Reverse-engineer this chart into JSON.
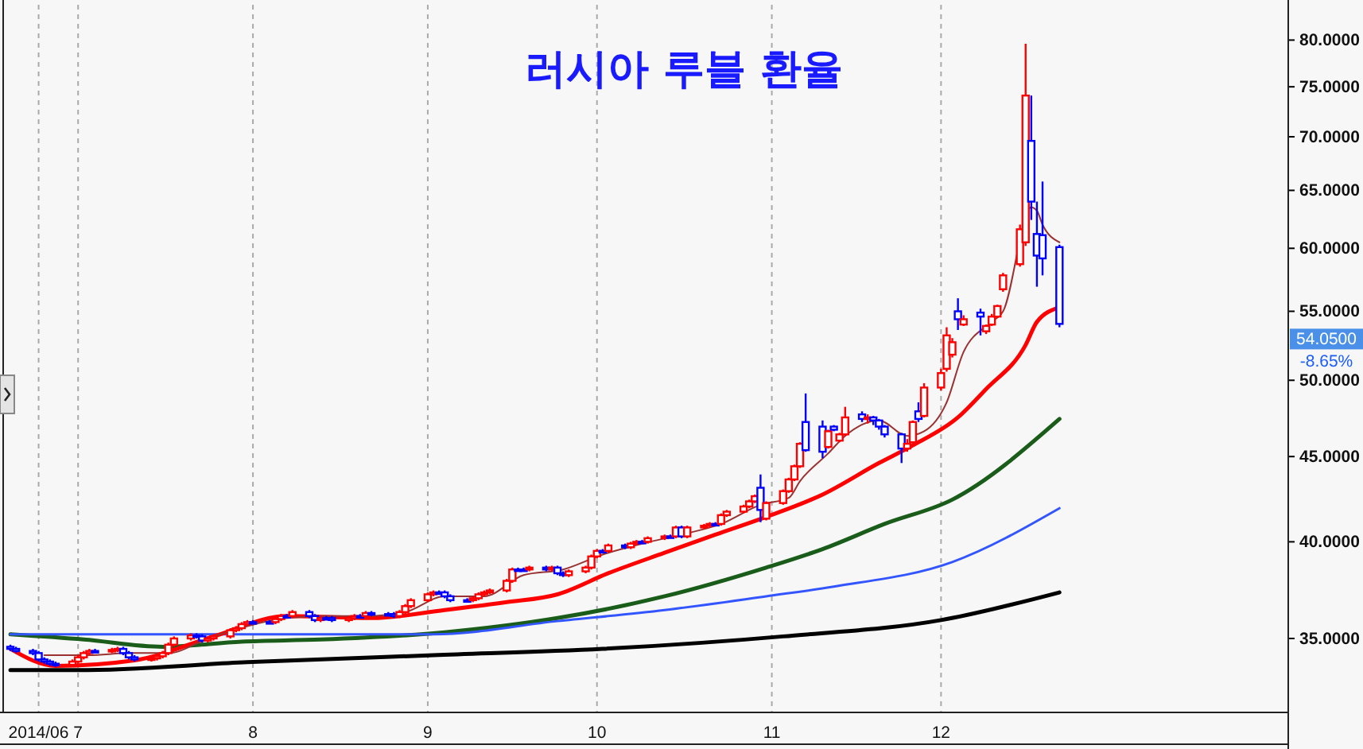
{
  "chart_data": {
    "type": "candlestick",
    "title": "러시아 루블 환율",
    "log": true,
    "grid": "x",
    "xlim": [
      "2014-06-18",
      "2015-01-31"
    ],
    "xticks": [
      {
        "value": "2014-06-24",
        "label": "2014/06"
      },
      {
        "value": "2014-07-01",
        "label": "7"
      },
      {
        "value": "2014-08-01",
        "label": "8"
      },
      {
        "value": "2014-09-01",
        "label": "9"
      },
      {
        "value": "2014-10-01",
        "label": "10"
      },
      {
        "value": "2014-11-01",
        "label": "11"
      },
      {
        "value": "2014-12-01",
        "label": "12"
      }
    ],
    "ylim": [
      31.6,
      84
    ],
    "yticks": [
      {
        "value": 35,
        "label": "35.0000"
      },
      {
        "value": 40,
        "label": "40.0000"
      },
      {
        "value": 45,
        "label": "45.0000"
      },
      {
        "value": 50,
        "label": "50.0000"
      },
      {
        "value": 55,
        "label": "55.0000"
      },
      {
        "value": 60,
        "label": "60.0000"
      },
      {
        "value": 65,
        "label": "65.0000"
      },
      {
        "value": 70,
        "label": "70.0000"
      },
      {
        "value": 75,
        "label": "75.0000"
      },
      {
        "value": 80,
        "label": "80.0000"
      }
    ],
    "x": [
      "2014-06-19",
      "2014-06-20",
      "2014-06-23",
      "2014-06-24",
      "2014-06-25",
      "2014-06-26",
      "2014-06-27",
      "2014-06-30",
      "2014-07-01",
      "2014-07-02",
      "2014-07-03",
      "2014-07-04",
      "2014-07-07",
      "2014-07-08",
      "2014-07-09",
      "2014-07-10",
      "2014-07-11",
      "2014-07-14",
      "2014-07-15",
      "2014-07-16",
      "2014-07-17",
      "2014-07-18",
      "2014-07-21",
      "2014-07-22",
      "2014-07-23",
      "2014-07-24",
      "2014-07-25",
      "2014-07-28",
      "2014-07-29",
      "2014-07-30",
      "2014-07-31",
      "2014-08-01",
      "2014-08-04",
      "2014-08-05",
      "2014-08-06",
      "2014-08-07",
      "2014-08-08",
      "2014-08-11",
      "2014-08-12",
      "2014-08-13",
      "2014-08-14",
      "2014-08-15",
      "2014-08-18",
      "2014-08-19",
      "2014-08-20",
      "2014-08-21",
      "2014-08-22",
      "2014-08-25",
      "2014-08-26",
      "2014-08-27",
      "2014-08-28",
      "2014-08-29",
      "2014-09-01",
      "2014-09-02",
      "2014-09-03",
      "2014-09-04",
      "2014-09-05",
      "2014-09-08",
      "2014-09-09",
      "2014-09-10",
      "2014-09-11",
      "2014-09-12",
      "2014-09-15",
      "2014-09-16",
      "2014-09-17",
      "2014-09-18",
      "2014-09-19",
      "2014-09-22",
      "2014-09-23",
      "2014-09-24",
      "2014-09-25",
      "2014-09-26",
      "2014-09-29",
      "2014-09-30",
      "2014-10-01",
      "2014-10-02",
      "2014-10-03",
      "2014-10-06",
      "2014-10-07",
      "2014-10-08",
      "2014-10-09",
      "2014-10-10",
      "2014-10-13",
      "2014-10-14",
      "2014-10-15",
      "2014-10-16",
      "2014-10-17",
      "2014-10-20",
      "2014-10-21",
      "2014-10-22",
      "2014-10-23",
      "2014-10-24",
      "2014-10-27",
      "2014-10-28",
      "2014-10-29",
      "2014-10-30",
      "2014-10-31",
      "2014-11-03",
      "2014-11-04",
      "2014-11-05",
      "2014-11-06",
      "2014-11-07",
      "2014-11-10",
      "2014-11-11",
      "2014-11-12",
      "2014-11-13",
      "2014-11-14",
      "2014-11-17",
      "2014-11-18",
      "2014-11-19",
      "2014-11-20",
      "2014-11-21",
      "2014-11-24",
      "2014-11-25",
      "2014-11-26",
      "2014-11-27",
      "2014-11-28",
      "2014-12-01",
      "2014-12-02",
      "2014-12-03",
      "2014-12-04",
      "2014-12-05",
      "2014-12-08",
      "2014-12-09",
      "2014-12-10",
      "2014-12-11",
      "2014-12-12",
      "2014-12-15",
      "2014-12-16",
      "2014-12-17",
      "2014-12-18",
      "2014-12-19",
      "2014-12-22"
    ],
    "ohlc": [
      [
        34.6,
        34.7,
        34.4,
        34.5
      ],
      [
        34.5,
        34.6,
        34.3,
        34.4
      ],
      [
        34.4,
        34.5,
        34.2,
        34.3
      ],
      [
        34.3,
        34.4,
        33.9,
        34.0
      ],
      [
        34.0,
        34.1,
        33.8,
        33.9
      ],
      [
        33.9,
        34.0,
        33.7,
        33.8
      ],
      [
        33.8,
        33.9,
        33.65,
        33.75
      ],
      [
        33.75,
        34.0,
        33.65,
        33.9
      ],
      [
        33.9,
        34.2,
        33.8,
        34.1
      ],
      [
        34.1,
        34.4,
        34.0,
        34.3
      ],
      [
        34.3,
        34.5,
        34.2,
        34.4
      ],
      [
        34.4,
        34.5,
        34.3,
        34.4
      ],
      [
        34.4,
        34.55,
        34.3,
        34.45
      ],
      [
        34.45,
        34.6,
        34.35,
        34.5
      ],
      [
        34.5,
        34.6,
        34.2,
        34.3
      ],
      [
        34.3,
        34.4,
        34.0,
        34.1
      ],
      [
        34.1,
        34.2,
        33.9,
        34.0
      ],
      [
        34.0,
        34.15,
        33.9,
        34.05
      ],
      [
        34.05,
        34.25,
        33.95,
        34.15
      ],
      [
        34.15,
        34.4,
        34.05,
        34.3
      ],
      [
        34.3,
        34.8,
        34.2,
        34.7
      ],
      [
        34.7,
        35.1,
        34.6,
        35.0
      ],
      [
        35.0,
        35.25,
        34.9,
        35.15
      ],
      [
        35.15,
        35.25,
        35.0,
        35.1
      ],
      [
        35.1,
        35.2,
        34.8,
        34.9
      ],
      [
        34.9,
        35.1,
        34.8,
        35.0
      ],
      [
        35.0,
        35.2,
        34.9,
        35.1
      ],
      [
        35.1,
        35.5,
        35.0,
        35.4
      ],
      [
        35.4,
        35.6,
        35.3,
        35.5
      ],
      [
        35.5,
        35.8,
        35.4,
        35.7
      ],
      [
        35.7,
        35.9,
        35.6,
        35.8
      ],
      [
        35.8,
        35.9,
        35.7,
        35.8
      ],
      [
        35.8,
        35.9,
        35.7,
        35.8
      ],
      [
        35.8,
        36.05,
        35.7,
        35.95
      ],
      [
        35.95,
        36.2,
        35.85,
        36.1
      ],
      [
        36.1,
        36.2,
        36.0,
        36.1
      ],
      [
        36.1,
        36.4,
        36.0,
        36.3
      ],
      [
        36.3,
        36.4,
        36.0,
        36.1
      ],
      [
        36.1,
        36.2,
        35.8,
        35.9
      ],
      [
        35.9,
        36.1,
        35.8,
        36.0
      ],
      [
        36.0,
        36.1,
        35.9,
        36.0
      ],
      [
        36.0,
        36.1,
        35.8,
        35.9
      ],
      [
        35.9,
        36.1,
        35.8,
        36.0
      ],
      [
        36.0,
        36.2,
        35.9,
        36.1
      ],
      [
        36.1,
        36.2,
        36.0,
        36.1
      ],
      [
        36.1,
        36.35,
        36.0,
        36.25
      ],
      [
        36.25,
        36.35,
        36.1,
        36.2
      ],
      [
        36.2,
        36.3,
        36.1,
        36.2
      ],
      [
        36.2,
        36.3,
        36.0,
        36.1
      ],
      [
        36.1,
        36.4,
        36.0,
        36.3
      ],
      [
        36.3,
        36.7,
        36.2,
        36.6
      ],
      [
        36.6,
        37.0,
        36.5,
        36.9
      ],
      [
        36.9,
        37.3,
        36.8,
        37.2
      ],
      [
        37.2,
        37.4,
        37.1,
        37.3
      ],
      [
        37.3,
        37.4,
        37.2,
        37.3
      ],
      [
        37.3,
        37.4,
        37.0,
        37.1
      ],
      [
        37.1,
        37.2,
        36.8,
        36.9
      ],
      [
        36.9,
        37.0,
        36.8,
        36.9
      ],
      [
        36.9,
        37.1,
        36.8,
        37.0
      ],
      [
        37.0,
        37.3,
        36.9,
        37.2
      ],
      [
        37.2,
        37.4,
        37.1,
        37.3
      ],
      [
        37.3,
        37.5,
        37.2,
        37.4
      ],
      [
        37.4,
        38.0,
        37.3,
        37.9
      ],
      [
        37.9,
        38.6,
        37.8,
        38.5
      ],
      [
        38.5,
        38.6,
        38.4,
        38.5
      ],
      [
        38.5,
        38.6,
        38.4,
        38.5
      ],
      [
        38.5,
        38.7,
        38.4,
        38.6
      ],
      [
        38.6,
        38.7,
        38.4,
        38.5
      ],
      [
        38.5,
        38.7,
        38.4,
        38.6
      ],
      [
        38.6,
        38.7,
        38.2,
        38.3
      ],
      [
        38.3,
        38.4,
        38.1,
        38.2
      ],
      [
        38.2,
        38.5,
        38.1,
        38.4
      ],
      [
        38.4,
        38.7,
        38.3,
        38.6
      ],
      [
        38.6,
        39.3,
        38.5,
        39.2
      ],
      [
        39.2,
        39.6,
        39.1,
        39.5
      ],
      [
        39.5,
        39.6,
        39.4,
        39.5
      ],
      [
        39.5,
        39.9,
        39.4,
        39.8
      ],
      [
        39.8,
        39.9,
        39.6,
        39.7
      ],
      [
        39.7,
        40.0,
        39.6,
        39.9
      ],
      [
        39.9,
        40.1,
        39.8,
        40.0
      ],
      [
        40.0,
        40.1,
        39.9,
        40.0
      ],
      [
        40.0,
        40.3,
        39.9,
        40.2
      ],
      [
        40.2,
        40.4,
        40.1,
        40.3
      ],
      [
        40.3,
        40.4,
        40.2,
        40.3
      ],
      [
        40.3,
        40.9,
        40.2,
        40.8
      ],
      [
        40.8,
        40.9,
        40.2,
        40.3
      ],
      [
        40.3,
        40.9,
        40.2,
        40.8
      ],
      [
        40.8,
        41.0,
        40.7,
        40.9
      ],
      [
        40.9,
        41.1,
        40.8,
        41.0
      ],
      [
        41.0,
        41.1,
        40.9,
        41.0
      ],
      [
        41.0,
        41.6,
        40.9,
        41.5
      ],
      [
        41.5,
        41.8,
        41.4,
        41.7
      ],
      [
        41.7,
        42.1,
        41.6,
        42.0
      ],
      [
        42.0,
        42.4,
        41.9,
        42.3
      ],
      [
        42.3,
        42.7,
        42.2,
        42.6
      ],
      [
        43.1,
        43.9,
        41.1,
        41.8
      ],
      [
        41.3,
        42.3,
        41.2,
        42.2
      ],
      [
        42.2,
        43.0,
        42.1,
        42.9
      ],
      [
        42.9,
        43.7,
        42.8,
        43.6
      ],
      [
        43.6,
        44.5,
        43.5,
        44.4
      ],
      [
        44.4,
        45.9,
        44.3,
        45.8
      ],
      [
        47.2,
        49.1,
        45.3,
        45.4
      ],
      [
        46.9,
        47.3,
        44.9,
        45.3
      ],
      [
        45.6,
        46.7,
        45.5,
        46.6
      ],
      [
        46.9,
        47.0,
        46.6,
        46.7
      ],
      [
        46.0,
        46.5,
        45.9,
        46.4
      ],
      [
        46.4,
        48.2,
        46.3,
        47.5
      ],
      [
        47.7,
        47.9,
        47.2,
        47.4
      ],
      [
        47.4,
        47.7,
        47.1,
        47.5
      ],
      [
        47.5,
        47.6,
        47.0,
        47.3
      ],
      [
        47.3,
        47.4,
        46.7,
        46.9
      ],
      [
        46.9,
        47.0,
        46.2,
        46.4
      ],
      [
        46.4,
        46.5,
        44.6,
        45.5
      ],
      [
        45.5,
        46.1,
        45.3,
        45.8
      ],
      [
        45.9,
        47.3,
        45.8,
        47.2
      ],
      [
        47.9,
        48.5,
        47.2,
        47.4
      ],
      [
        47.6,
        49.8,
        47.5,
        49.5
      ],
      [
        49.5,
        50.8,
        49.3,
        50.5
      ],
      [
        50.8,
        53.8,
        50.6,
        53.2
      ],
      [
        51.8,
        53.0,
        51.6,
        52.7
      ],
      [
        55.0,
        56.0,
        53.6,
        54.4
      ],
      [
        54.0,
        54.7,
        53.9,
        54.4
      ],
      [
        54.9,
        55.2,
        53.2,
        54.6
      ],
      [
        53.5,
        54.0,
        53.3,
        53.9
      ],
      [
        54.0,
        54.8,
        53.9,
        54.6
      ],
      [
        54.6,
        55.5,
        54.5,
        55.4
      ],
      [
        56.7,
        58.0,
        56.5,
        57.8
      ],
      [
        58.7,
        62.0,
        58.5,
        61.6
      ],
      [
        60.5,
        79.6,
        60.2,
        74.1
      ],
      [
        69.6,
        74.1,
        62.4,
        64.0
      ],
      [
        61.2,
        64.0,
        56.9,
        59.4
      ],
      [
        61.1,
        65.8,
        57.8,
        59.17
      ],
      [
        60.1,
        60.3,
        53.8,
        54.05
      ]
    ],
    "series": [
      {
        "type": "line",
        "color": "#000000",
        "x": [
          "2014-06-19",
          "2014-07-01",
          "2014-07-31",
          "2014-09-02",
          "2014-10-02",
          "2014-11-03",
          "2014-12-01",
          "2014-12-22"
        ],
        "values": [
          33.5,
          33.5,
          33.87,
          34.2,
          34.5,
          35.1,
          35.9,
          37.3
        ]
      },
      {
        "type": "line",
        "color": "#1a5c1a",
        "x": [
          "2014-06-19",
          "2014-07-02",
          "2014-07-16",
          "2014-07-30",
          "2014-08-13",
          "2014-09-04",
          "2014-09-24",
          "2014-10-13",
          "2014-10-31",
          "2014-11-10",
          "2014-11-21",
          "2014-12-03",
          "2014-12-22"
        ],
        "values": [
          35.2,
          34.95,
          34.6,
          34.85,
          34.95,
          35.3,
          36.0,
          37.1,
          38.6,
          39.6,
          41.0,
          42.4,
          47.4
        ]
      },
      {
        "type": "line",
        "color": "#3355ff",
        "x": [
          "2014-06-19",
          "2014-09-02",
          "2014-09-24",
          "2014-10-13",
          "2014-10-31",
          "2014-11-12",
          "2014-12-03",
          "2014-12-22"
        ],
        "values": [
          35.2,
          35.2,
          35.85,
          36.4,
          37.1,
          37.6,
          38.9,
          41.9
        ]
      },
      {
        "type": "line",
        "color": "#ff0000",
        "x": [
          "2014-06-19",
          "2014-06-27",
          "2014-07-11",
          "2014-07-25",
          "2014-08-07",
          "2014-08-22",
          "2014-09-04",
          "2014-09-15",
          "2014-09-24",
          "2014-10-03",
          "2014-10-13",
          "2014-10-22",
          "2014-10-31",
          "2014-11-10",
          "2014-11-20",
          "2014-11-26",
          "2014-12-04",
          "2014-12-09",
          "2014-12-16",
          "2014-12-18",
          "2014-12-22"
        ],
        "values": [
          34.5,
          33.7,
          33.96,
          35.1,
          36.1,
          36.0,
          36.4,
          36.8,
          37.2,
          38.3,
          39.4,
          40.4,
          41.4,
          42.7,
          44.6,
          45.7,
          47.5,
          49.4,
          52.5,
          54.2,
          55.3
        ]
      },
      {
        "type": "line",
        "color": "#993333",
        "x": [
          "2014-06-25",
          "2014-07-03",
          "2014-07-10",
          "2014-07-17",
          "2014-07-24",
          "2014-07-31",
          "2014-08-07",
          "2014-08-14",
          "2014-08-21",
          "2014-08-28",
          "2014-09-04",
          "2014-09-11",
          "2014-09-18",
          "2014-09-25",
          "2014-10-02",
          "2014-10-09",
          "2014-10-16",
          "2014-10-23",
          "2014-10-30",
          "2014-11-04",
          "2014-11-06",
          "2014-11-11",
          "2014-11-14",
          "2014-11-20",
          "2014-11-25",
          "2014-11-28",
          "2014-12-02",
          "2014-12-05",
          "2014-12-10",
          "2014-12-12",
          "2014-12-17",
          "2014-12-18",
          "2014-12-19",
          "2014-12-22"
        ],
        "values": [
          34.2,
          34.2,
          34.3,
          34.3,
          35.0,
          35.6,
          36.0,
          36.1,
          36.1,
          36.3,
          37.1,
          37.1,
          38.2,
          38.5,
          39.3,
          39.9,
          40.4,
          41.0,
          42.1,
          42.5,
          43.5,
          45.2,
          46.3,
          47.3,
          46.3,
          46.6,
          48.5,
          52.0,
          54.2,
          55.0,
          63.5,
          63.2,
          62.0,
          60.5
        ]
      }
    ],
    "annotations": [
      "54.0500",
      "-8.65%"
    ]
  }
}
